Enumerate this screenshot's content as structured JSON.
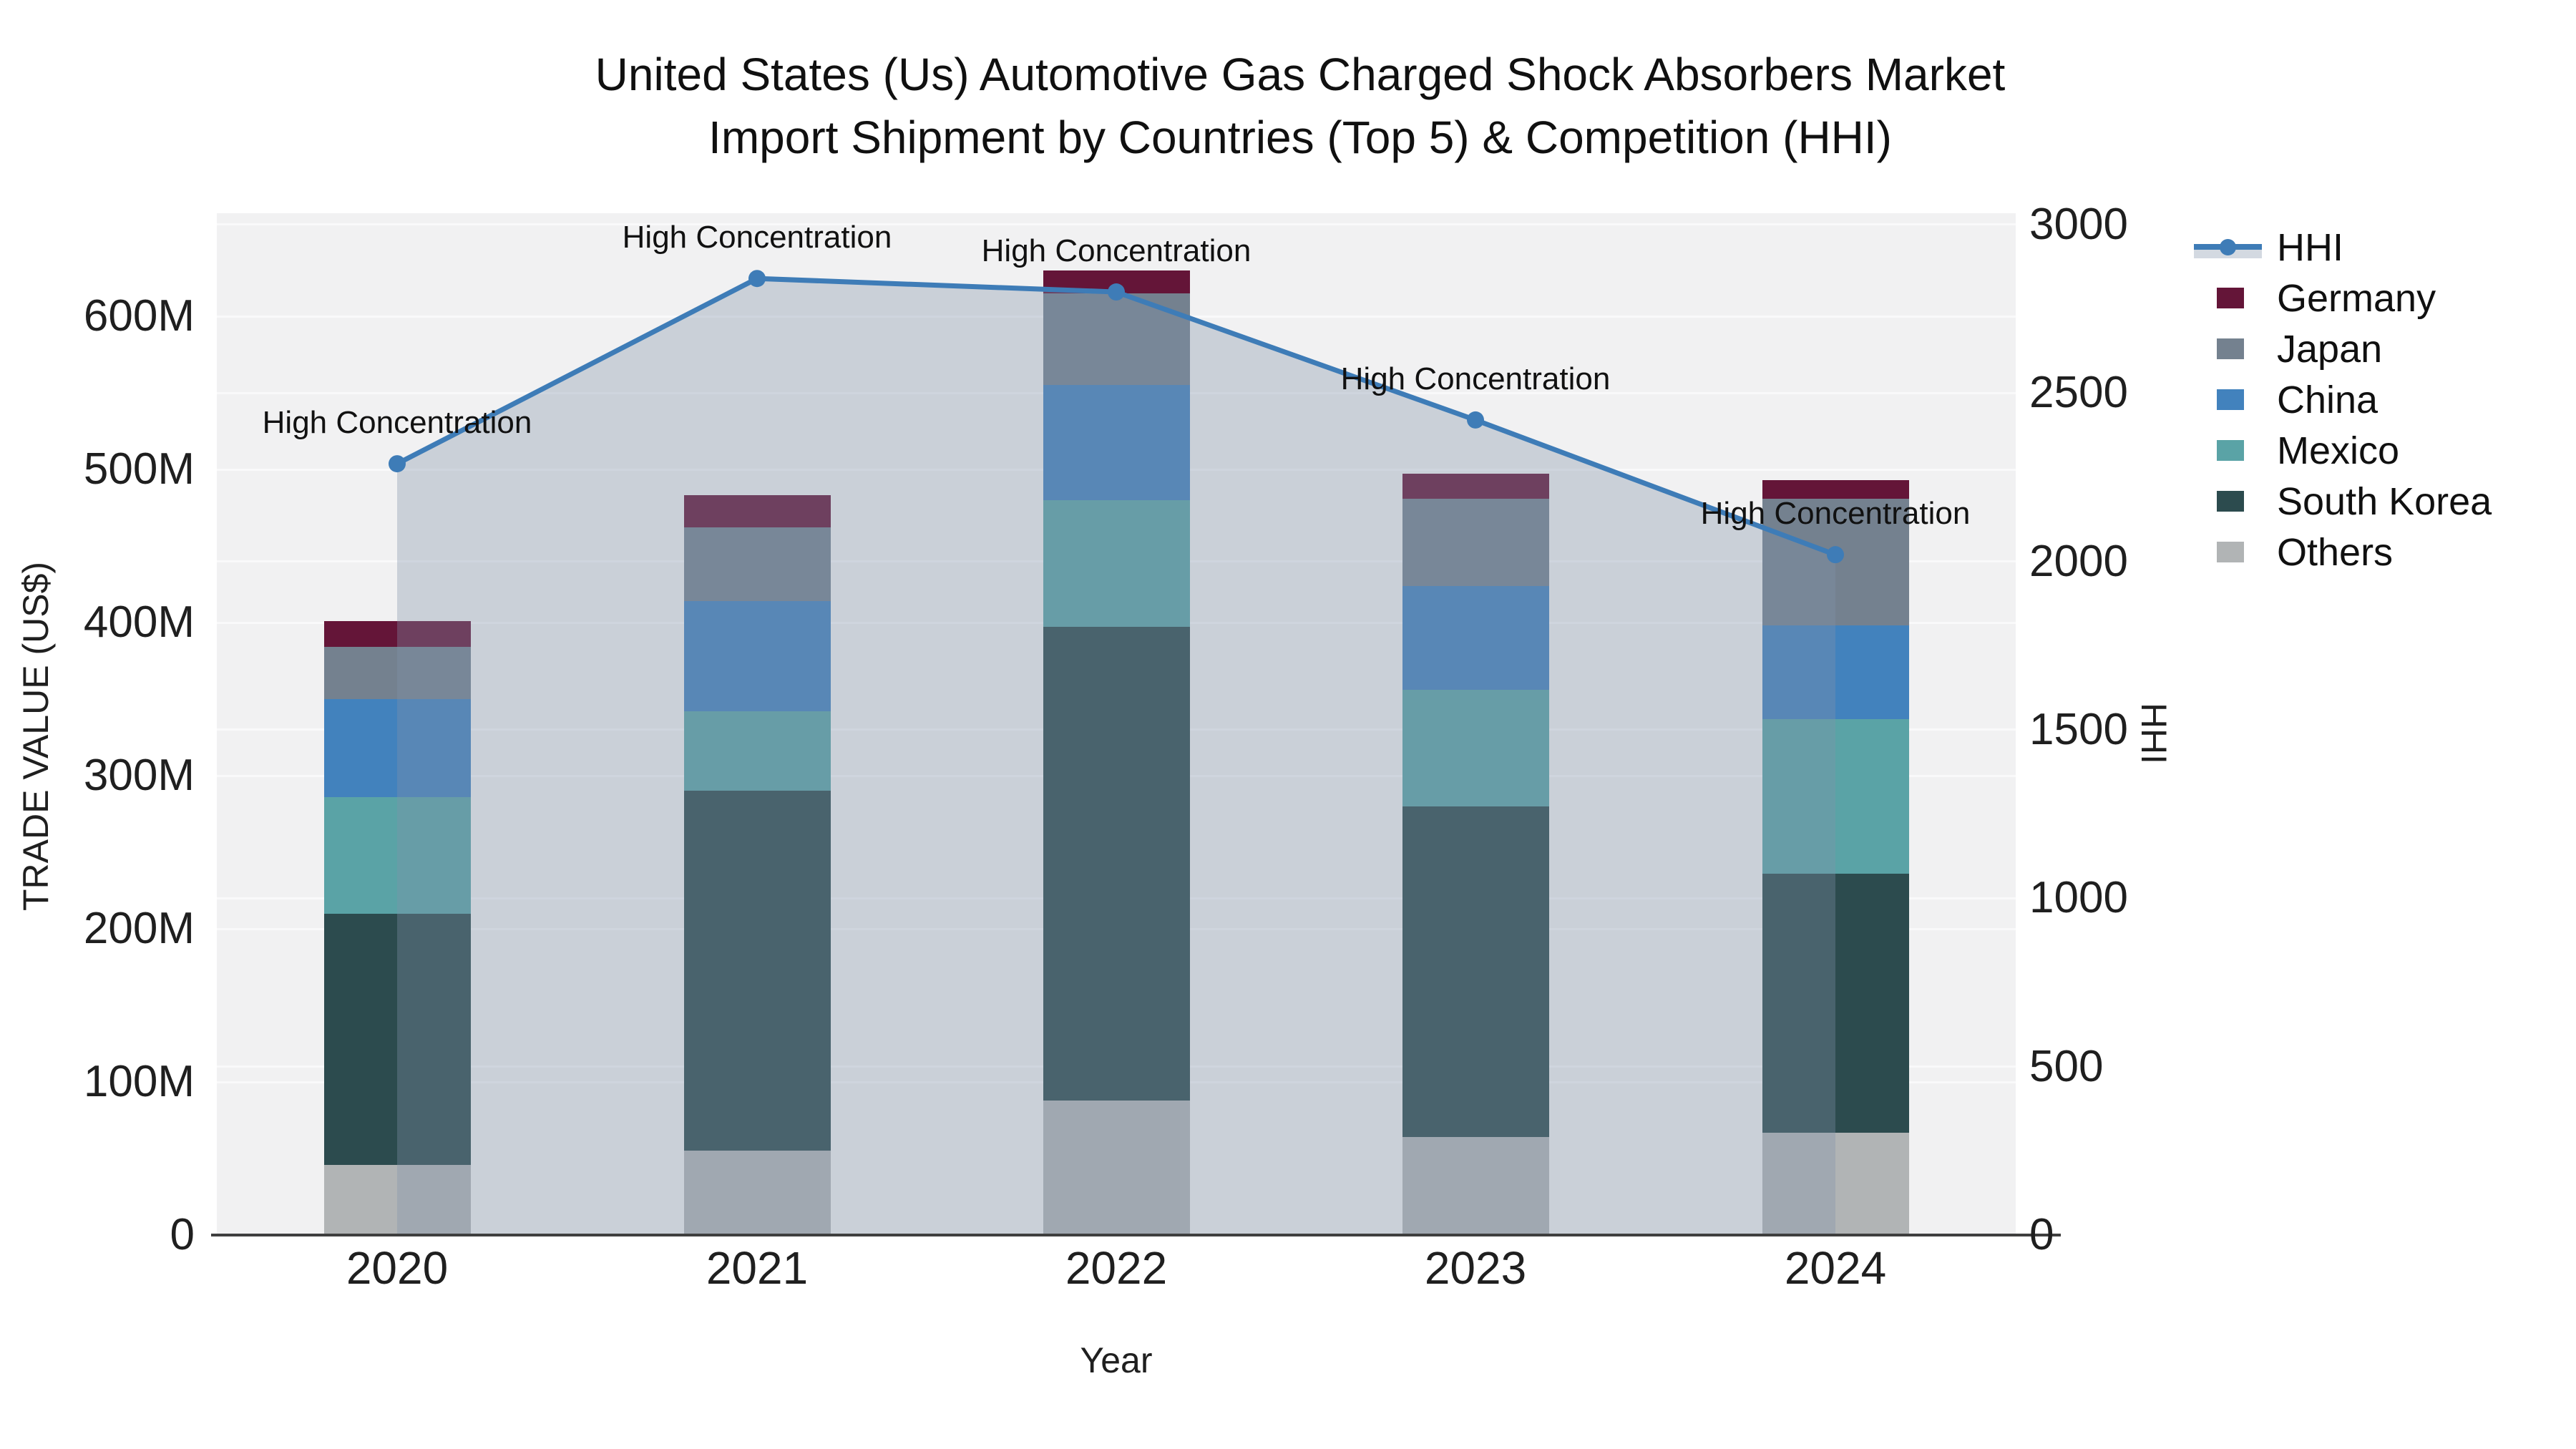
{
  "title": {
    "line1": "United States (Us) Automotive Gas Charged Shock Absorbers Market",
    "line2": "Import Shipment by Countries (Top 5) & Competition (HHI)"
  },
  "axes": {
    "x_title": "Year",
    "y_left_title": "TRADE VALUE (US$)",
    "y_right_title": "HHI",
    "y_left_ticks": [
      {
        "value": 0,
        "label": "0"
      },
      {
        "value": 100,
        "label": "100M"
      },
      {
        "value": 200,
        "label": "200M"
      },
      {
        "value": 300,
        "label": "300M"
      },
      {
        "value": 400,
        "label": "400M"
      },
      {
        "value": 500,
        "label": "500M"
      },
      {
        "value": 600,
        "label": "600M"
      }
    ],
    "y_right_ticks": [
      {
        "value": 0,
        "label": "0"
      },
      {
        "value": 500,
        "label": "500"
      },
      {
        "value": 1000,
        "label": "1000"
      },
      {
        "value": 1500,
        "label": "1500"
      },
      {
        "value": 2000,
        "label": "2000"
      },
      {
        "value": 2500,
        "label": "2500"
      },
      {
        "value": 3000,
        "label": "3000"
      }
    ]
  },
  "chart_data": {
    "type": "bar",
    "subtype": "stacked-bars-with-line-overlay",
    "categories": [
      "2020",
      "2021",
      "2022",
      "2023",
      "2024"
    ],
    "value_unit": "million US$",
    "series": [
      {
        "name": "Others",
        "color": "#B1B4B5",
        "values": [
          46,
          55,
          88,
          64,
          67
        ]
      },
      {
        "name": "South Korea",
        "color": "#2C4B4E",
        "values": [
          164,
          235,
          309,
          216,
          169
        ]
      },
      {
        "name": "Mexico",
        "color": "#5AA3A6",
        "values": [
          76,
          52,
          83,
          76,
          101
        ]
      },
      {
        "name": "China",
        "color": "#4282BD",
        "values": [
          64,
          72,
          75,
          68,
          61
        ]
      },
      {
        "name": "Japan",
        "color": "#74818F",
        "values": [
          34,
          48,
          60,
          57,
          83
        ]
      },
      {
        "name": "Germany",
        "color": "#641538",
        "values": [
          17,
          21,
          15,
          16,
          12
        ]
      }
    ],
    "line_series": {
      "name": "HHI",
      "color": "#3E7CB7",
      "area_fill_color": "rgba(130,145,170,0.35)",
      "values": [
        2290,
        2840,
        2800,
        2420,
        2020
      ]
    },
    "annotations": [
      {
        "category": "2020",
        "text": "High Concentration"
      },
      {
        "category": "2021",
        "text": "High Concentration"
      },
      {
        "category": "2022",
        "text": "High Concentration"
      },
      {
        "category": "2023",
        "text": "High Concentration"
      },
      {
        "category": "2024",
        "text": "High Concentration"
      }
    ],
    "xlabel": "Year",
    "ylabel": "TRADE VALUE (US$)",
    "ylabel_right": "HHI",
    "ylim_left_millions": [
      0,
      667
    ],
    "ylim_right": [
      0,
      3034
    ],
    "grid": true,
    "legend_position": "right",
    "legend_order": [
      "HHI",
      "Germany",
      "Japan",
      "China",
      "Mexico",
      "South Korea",
      "Others"
    ]
  },
  "style": {
    "plot_background": "#f1f1f2",
    "figure_background": "#ffffff",
    "gridline_color": "rgba(255,255,255,0.60)",
    "axis_line_color": "#3f3f3f",
    "text_color": "#1f1f1f"
  }
}
